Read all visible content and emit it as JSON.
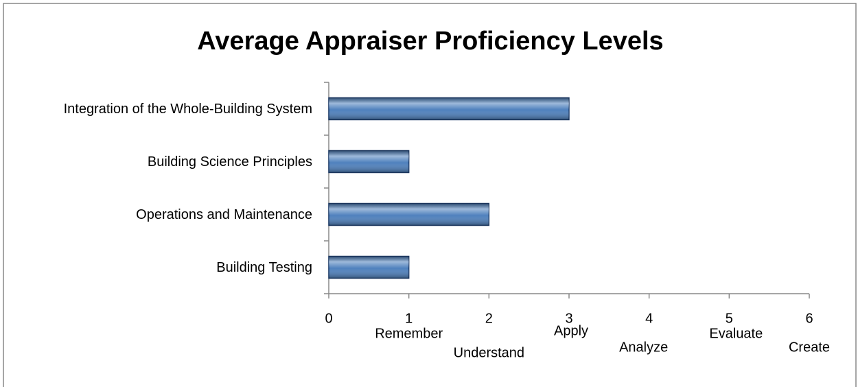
{
  "chart_data": {
    "type": "bar",
    "orientation": "horizontal",
    "title": "Average Appraiser Proficiency Levels",
    "categories": [
      "Integration of the Whole-Building System",
      "Building Science Principles",
      "Operations and Maintenance",
      "Building Testing"
    ],
    "values": [
      3,
      1,
      2,
      1
    ],
    "color": "#4f81bd",
    "xlim": [
      0,
      6
    ],
    "xticks": [
      0,
      1,
      2,
      3,
      4,
      5,
      6
    ],
    "annotations": [
      "Remember",
      "Understand",
      "Apply",
      "Analyze",
      "Evaluate",
      "Create"
    ]
  }
}
